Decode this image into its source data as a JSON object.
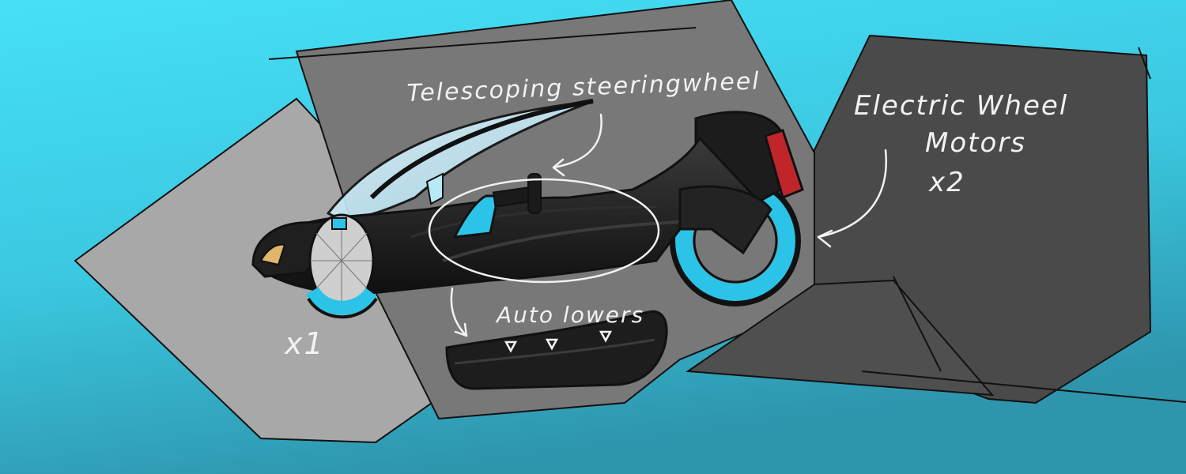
{
  "labels": {
    "steering": "Telescoping steeringwheel",
    "motors_line1": "Electric Wheel",
    "motors_line2": "Motors",
    "motors_count": "x2",
    "lowers": "Auto lowers",
    "front_count": "x1"
  },
  "colors": {
    "background_top": "#46e0f7",
    "background_bottom": "#2f9bb3",
    "panel_light": "#a9a9a9",
    "panel_mid": "#7a7a7a",
    "panel_dark": "#4a4a4a",
    "accent_cyan": "#2bc3e8",
    "accent_red": "#c0252a",
    "body_black": "#1a1a1a"
  }
}
